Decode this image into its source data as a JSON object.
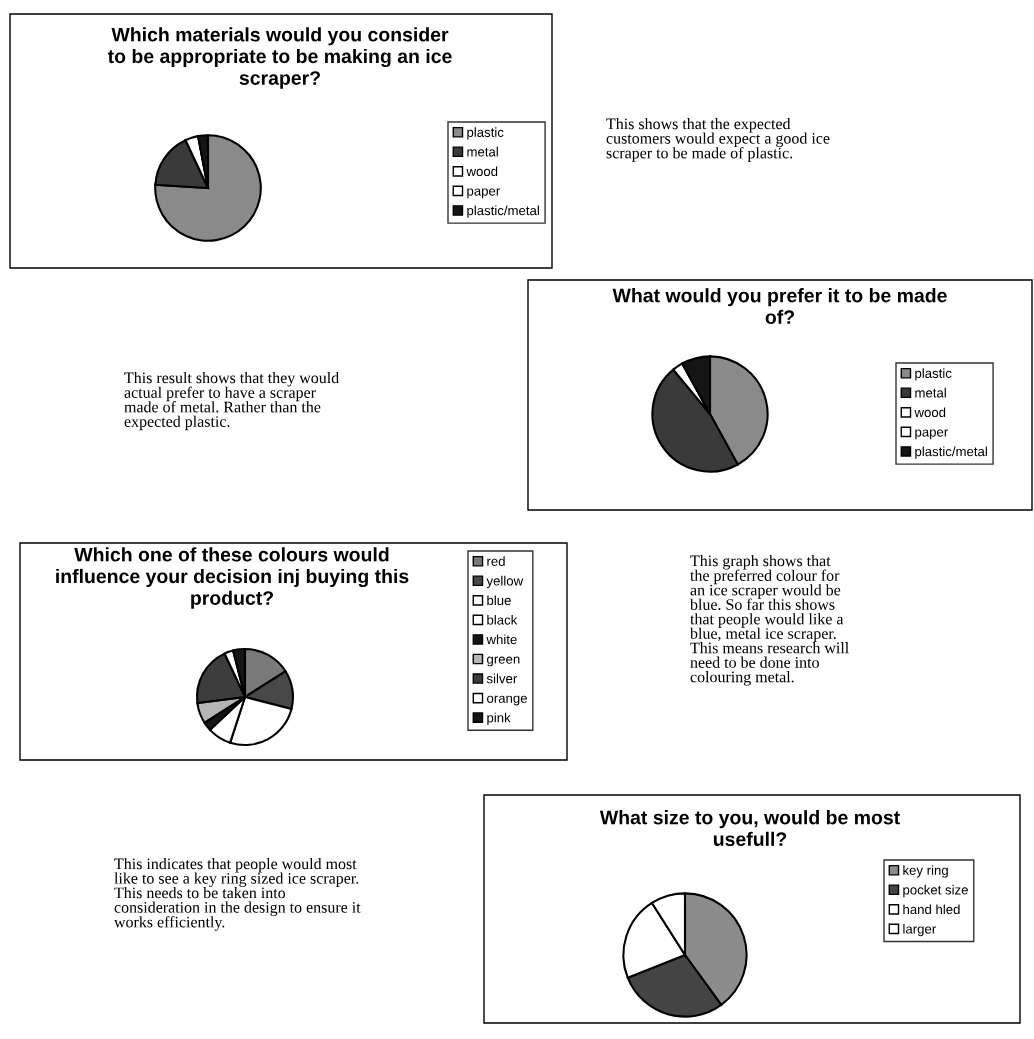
{
  "chart_data": [
    {
      "type": "pie",
      "title": "Which materials would you consider\nto be appropriate to be making an ice\nscraper?",
      "categories": [
        "plastic",
        "metal",
        "wood",
        "paper",
        "plastic/metal"
      ],
      "values": [
        76,
        17,
        4,
        0,
        3
      ],
      "colors": [
        "#8a8a8a",
        "#3a3a3a",
        "#ffffff",
        "#ffffff",
        "#151515"
      ],
      "legend": "right",
      "annotations": [
        "This shows that the expected\ncustomers would expect a good ice\nscraper to be made of plastic."
      ]
    },
    {
      "type": "pie",
      "title": "What would you prefer it to be made\nof?",
      "categories": [
        "plastic",
        "metal",
        "wood",
        "paper",
        "plastic/metal"
      ],
      "values": [
        42,
        47,
        3,
        0,
        8
      ],
      "colors": [
        "#8a8a8a",
        "#3a3a3a",
        "#ffffff",
        "#ffffff",
        "#151515"
      ],
      "legend": "right",
      "annotations": [
        "This result shows that they would\nactual prefer to have a scraper\nmade of metal. Rather than the\nexpected plastic."
      ]
    },
    {
      "type": "pie",
      "title": "Which one of these colours would\ninfluence your decision inj buying this\nproduct?",
      "categories": [
        "red",
        "yellow",
        "blue",
        "black",
        "white",
        "green",
        "silver",
        "orange",
        "pink"
      ],
      "values": [
        16,
        13,
        26,
        8,
        3,
        7,
        20,
        3,
        4
      ],
      "colors": [
        "#7a7a7a",
        "#484848",
        "#ffffff",
        "#ffffff",
        "#151515",
        "#b5b5b5",
        "#3c3c3c",
        "#ffffff",
        "#151515"
      ],
      "legend": "right",
      "annotations": [
        "This graph shows that\nthe preferred colour for\nan ice scraper would be\nblue. So far this shows\nthat people would like a\nblue, metal ice scraper.\nThis means research will\nneed to be done into\ncolouring metal."
      ]
    },
    {
      "type": "pie",
      "title": "What size to you, would be most\nusefull?",
      "categories": [
        "key ring",
        "pocket size",
        "hand hled",
        "larger"
      ],
      "values": [
        40,
        29,
        22,
        9
      ],
      "colors": [
        "#8c8c8c",
        "#444444",
        "#ffffff",
        "#ffffff"
      ],
      "legend": "right",
      "annotations": [
        "This indicates that people would most\nlike to see a key ring sized ice scraper.\nThis needs to be taken into\nconsideration in the design to ensure it\nworks efficiently."
      ]
    }
  ]
}
